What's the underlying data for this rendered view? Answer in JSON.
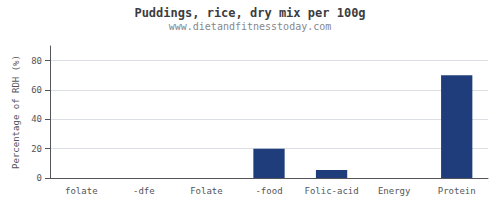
{
  "chart_data": {
    "type": "bar",
    "title": "Puddings, rice, dry mix per 100g",
    "subtitle": "www.dietandfitnesstoday.com",
    "categories": [
      "folate",
      "-dfe",
      "Folate",
      "-food",
      "Folic-acid",
      "Energy",
      "Protein"
    ],
    "values": [
      0,
      0,
      0,
      20,
      5.5,
      0,
      70
    ],
    "color": "#1F3D7A",
    "ylabel": "Percentage of RDH (%)",
    "ylim": [
      0,
      90
    ],
    "yticks": [
      0,
      20,
      40,
      60,
      80
    ],
    "grid": true
  }
}
